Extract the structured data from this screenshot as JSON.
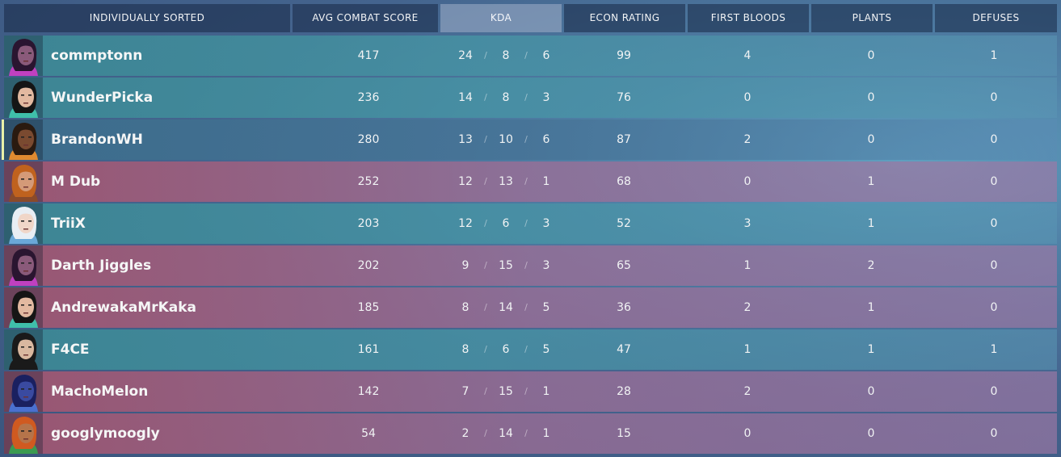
{
  "columns": [
    {
      "key": "sort",
      "label": "INDIVIDUALLY SORTED"
    },
    {
      "key": "acs",
      "label": "AVG COMBAT SCORE"
    },
    {
      "key": "kda",
      "label": "KDA"
    },
    {
      "key": "econ",
      "label": "ECON RATING"
    },
    {
      "key": "fb",
      "label": "FIRST BLOODS"
    },
    {
      "key": "plants",
      "label": "PLANTS"
    },
    {
      "key": "defuses",
      "label": "DEFUSES"
    }
  ],
  "active_column": "KDA",
  "kda_separator": "/",
  "colors": {
    "team_a": "#3f8f98",
    "team_b": "#a45e7c",
    "self_marker": "#e9f0a8"
  },
  "players": [
    {
      "name": "commptonn",
      "team": "blue",
      "acs": "417",
      "k": "24",
      "d": "8",
      "a": "6",
      "econ": "99",
      "fb": "4",
      "plants": "0",
      "defuses": "1",
      "agent_icon": "reyna-portrait"
    },
    {
      "name": "WunderPicka",
      "team": "blue",
      "acs": "236",
      "k": "14",
      "d": "8",
      "a": "3",
      "econ": "76",
      "fb": "0",
      "plants": "0",
      "defuses": "0",
      "agent_icon": "sage-portrait"
    },
    {
      "name": "BrandonWH",
      "team": "self",
      "acs": "280",
      "k": "13",
      "d": "10",
      "a": "6",
      "econ": "87",
      "fb": "2",
      "plants": "0",
      "defuses": "0",
      "agent_icon": "phoenix-portrait"
    },
    {
      "name": "M Dub",
      "team": "red",
      "acs": "252",
      "k": "12",
      "d": "13",
      "a": "1",
      "econ": "68",
      "fb": "0",
      "plants": "1",
      "defuses": "0",
      "agent_icon": "brimstone-portrait"
    },
    {
      "name": "TriiX",
      "team": "blue",
      "acs": "203",
      "k": "12",
      "d": "6",
      "a": "3",
      "econ": "52",
      "fb": "3",
      "plants": "1",
      "defuses": "0",
      "agent_icon": "jett-portrait"
    },
    {
      "name": "Darth Jiggles",
      "team": "red",
      "acs": "202",
      "k": "9",
      "d": "15",
      "a": "3",
      "econ": "65",
      "fb": "1",
      "plants": "2",
      "defuses": "0",
      "agent_icon": "reyna-portrait"
    },
    {
      "name": "AndrewakaMrKaka",
      "team": "red",
      "acs": "185",
      "k": "8",
      "d": "14",
      "a": "5",
      "econ": "36",
      "fb": "2",
      "plants": "1",
      "defuses": "0",
      "agent_icon": "sage-portrait"
    },
    {
      "name": "F4CE",
      "team": "blue",
      "acs": "161",
      "k": "8",
      "d": "6",
      "a": "5",
      "econ": "47",
      "fb": "1",
      "plants": "1",
      "defuses": "1",
      "agent_icon": "viper-portrait"
    },
    {
      "name": "MachoMelon",
      "team": "red",
      "acs": "142",
      "k": "7",
      "d": "15",
      "a": "1",
      "econ": "28",
      "fb": "2",
      "plants": "0",
      "defuses": "0",
      "agent_icon": "omen-portrait"
    },
    {
      "name": "googlymoogly",
      "team": "red",
      "acs": "54",
      "k": "2",
      "d": "14",
      "a": "1",
      "econ": "15",
      "fb": "0",
      "plants": "0",
      "defuses": "0",
      "agent_icon": "raze-portrait"
    }
  ]
}
